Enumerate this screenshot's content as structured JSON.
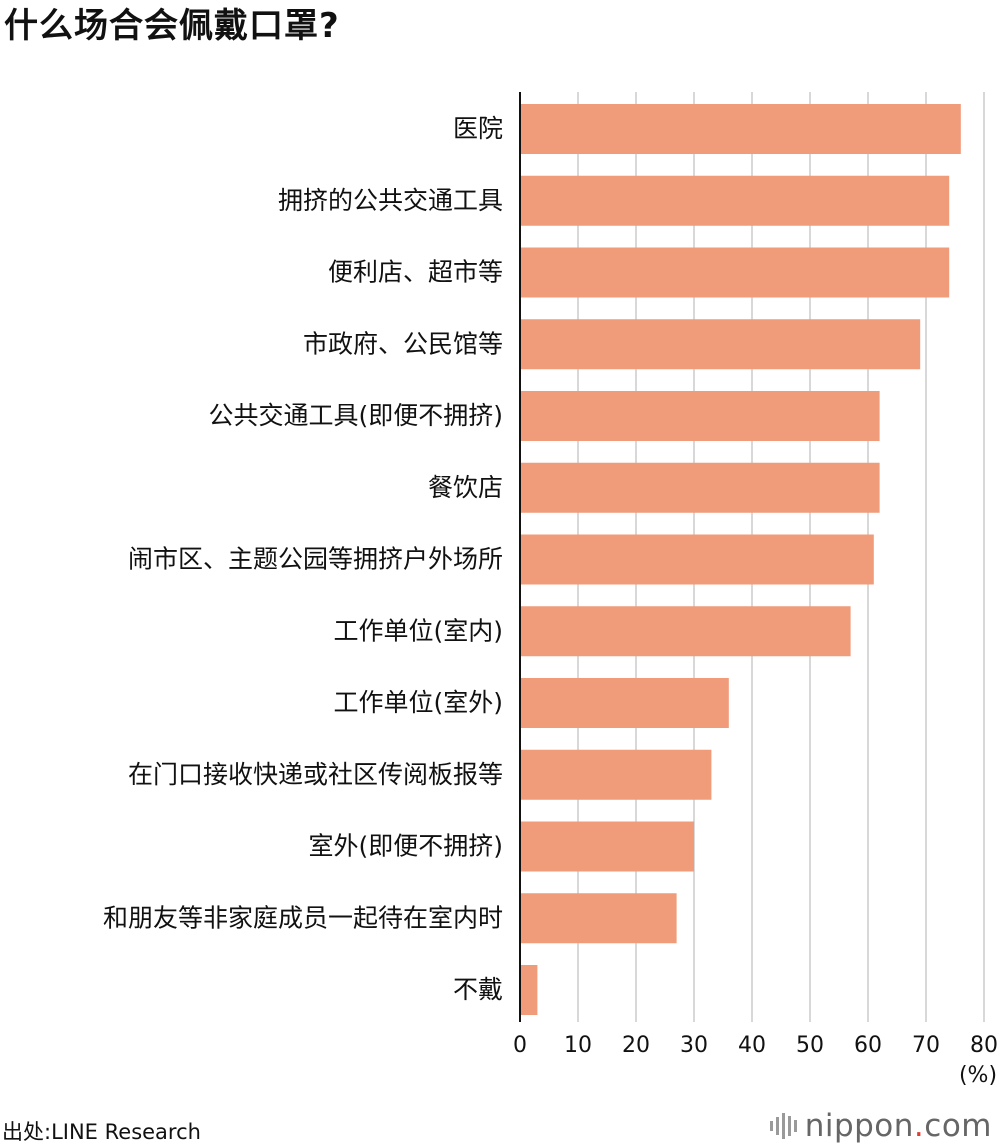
{
  "title": "什么场合会佩戴口罩?",
  "source": "出处:LINE Research",
  "brand": {
    "name": "nippon",
    "dot": ".",
    "suffix": "com",
    "icon": "nippon-sound-wave-logo",
    "dot_color": "#e23b2e"
  },
  "colors": {
    "bar": "#f09b7a",
    "gridline": "#cccccc",
    "axis": "#111111"
  },
  "chart_data": {
    "type": "bar",
    "orientation": "horizontal",
    "title": "什么场合会佩戴口罩?",
    "xlabel": "",
    "ylabel": "",
    "unit_label": "(%)",
    "xlim": [
      0,
      80
    ],
    "xticks": [
      0,
      10,
      20,
      30,
      40,
      50,
      60,
      70,
      80
    ],
    "grid": true,
    "categories": [
      "医院",
      "拥挤的公共交通工具",
      "便利店、超市等",
      "市政府、公民馆等",
      "公共交通工具(即便不拥挤)",
      "餐饮店",
      "闹市区、主题公园等拥挤户外场所",
      "工作单位(室内)",
      "工作单位(室外)",
      "在门口接收快递或社区传阅板报等",
      "室外(即便不拥挤)",
      "和朋友等非家庭成员一起待在室内时",
      "不戴"
    ],
    "values": [
      76,
      74,
      74,
      69,
      62,
      62,
      61,
      57,
      36,
      33,
      30,
      27,
      3
    ]
  }
}
